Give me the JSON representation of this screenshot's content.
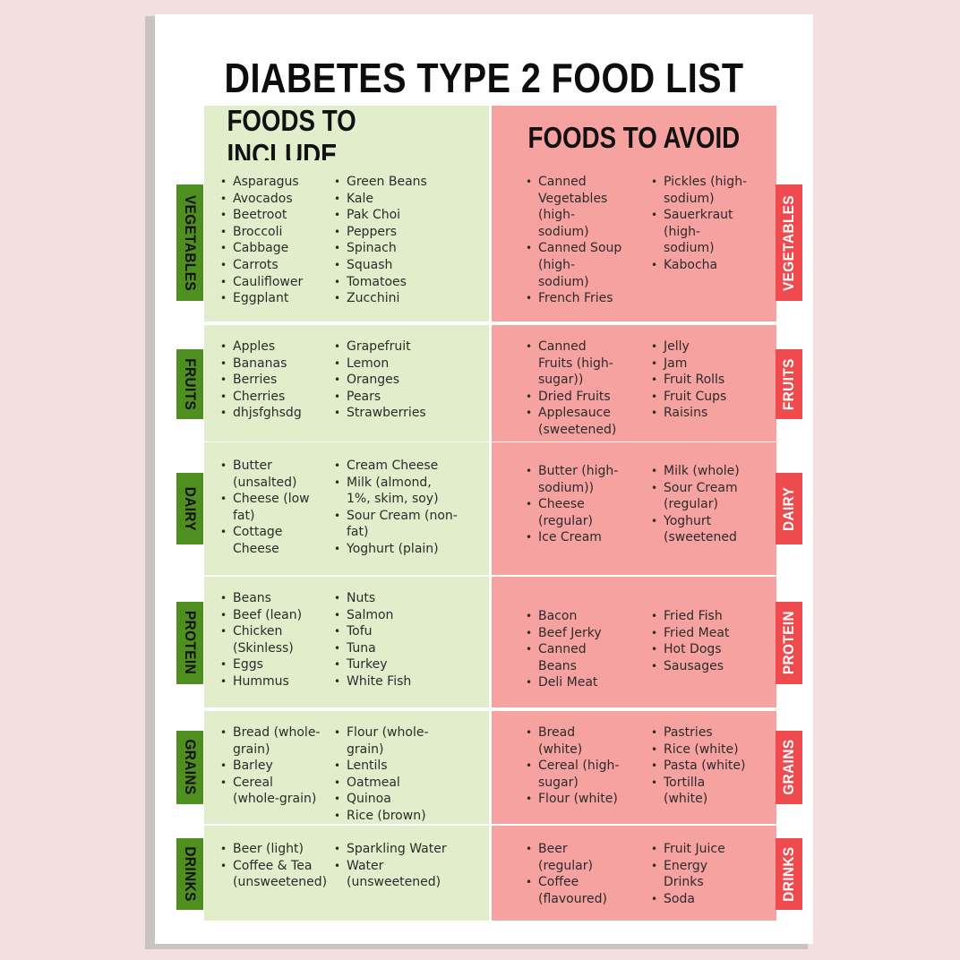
{
  "title": "DIABETES TYPE 2 FOOD LIST",
  "headers": {
    "include": "FOODS TO INCLUDE",
    "avoid": "FOODS TO AVOID"
  },
  "colors": {
    "include_bg": "#e2edcb",
    "avoid_bg": "#f6a2a0",
    "include_tab": "#4f8f1f",
    "avoid_tab": "#ef4a4e"
  },
  "sections": [
    {
      "label": "VEGETABLES",
      "include": [
        [
          "Asparagus",
          "Avocados",
          "Beetroot",
          "Broccoli",
          "Cabbage",
          "Carrots",
          "Cauliflower",
          "Eggplant"
        ],
        [
          "Green Beans",
          "Kale",
          "Pak Choi",
          "Peppers",
          "Spinach",
          "Squash",
          "Tomatoes",
          "Zucchini"
        ]
      ],
      "avoid": [
        [
          "Canned Vegetables (high-sodium)",
          "Canned Soup (high-sodium)",
          "French Fries"
        ],
        [
          "Pickles (high-sodium)",
          "Sauerkraut (high-sodium)",
          "Kabocha"
        ]
      ]
    },
    {
      "label": "FRUITS",
      "include": [
        [
          "Apples",
          "Bananas",
          "Berries",
          "Cherries",
          "dhjsfghsdg"
        ],
        [
          "Grapefruit",
          "Lemon",
          "Oranges",
          "Pears",
          "Strawberries"
        ]
      ],
      "avoid": [
        [
          "Canned Fruits (high-sugar))",
          "Dried Fruits",
          "Applesauce (sweetened)"
        ],
        [
          "Jelly",
          "Jam",
          "Fruit Rolls",
          "Fruit Cups",
          "Raisins"
        ]
      ]
    },
    {
      "label": "DAIRY",
      "include": [
        [
          "Butter (unsalted)",
          "Cheese (low fat)",
          "Cottage Cheese"
        ],
        [
          "Cream Cheese",
          "Milk (almond, 1%, skim, soy)",
          "Sour Cream (non-fat)",
          "Yoghurt (plain)"
        ]
      ],
      "avoid": [
        [
          "Butter (high-sodium))",
          "Cheese (regular)",
          "Ice Cream"
        ],
        [
          "Milk (whole)",
          "Sour Cream (regular)",
          "Yoghurt (sweetened"
        ]
      ]
    },
    {
      "label": "PROTEIN",
      "include": [
        [
          "Beans",
          "Beef (lean)",
          "Chicken (Skinless)",
          "Eggs",
          "Hummus"
        ],
        [
          "Nuts",
          "Salmon",
          "Tofu",
          "Tuna",
          "Turkey",
          "White Fish"
        ]
      ],
      "avoid": [
        [
          "Bacon",
          "Beef Jerky",
          "Canned Beans",
          "Deli Meat"
        ],
        [
          "Fried Fish",
          "Fried Meat",
          "Hot Dogs",
          "Sausages"
        ]
      ]
    },
    {
      "label": "GRAINS",
      "include": [
        [
          "Bread (whole-grain)",
          "Barley",
          "Cereal (whole-grain)"
        ],
        [
          "Flour (whole-grain)",
          "Lentils",
          "Oatmeal",
          "Quinoa",
          "Rice (brown)"
        ]
      ],
      "avoid": [
        [
          "Bread (white)",
          "Cereal (high-sugar)",
          "Flour (white)"
        ],
        [
          "Pastries",
          "Rice (white)",
          "Pasta (white)",
          "Tortilla (white)"
        ]
      ]
    },
    {
      "label": "DRINKS",
      "include": [
        [
          "Beer (light)",
          "Coffee & Tea (unsweetened)"
        ],
        [
          "Sparkling Water",
          "Water (unsweetened)"
        ]
      ],
      "avoid": [
        [
          "Beer (regular)",
          "Coffee (flavoured)"
        ],
        [
          "Fruit Juice",
          "Energy Drinks",
          "Soda"
        ]
      ]
    }
  ]
}
